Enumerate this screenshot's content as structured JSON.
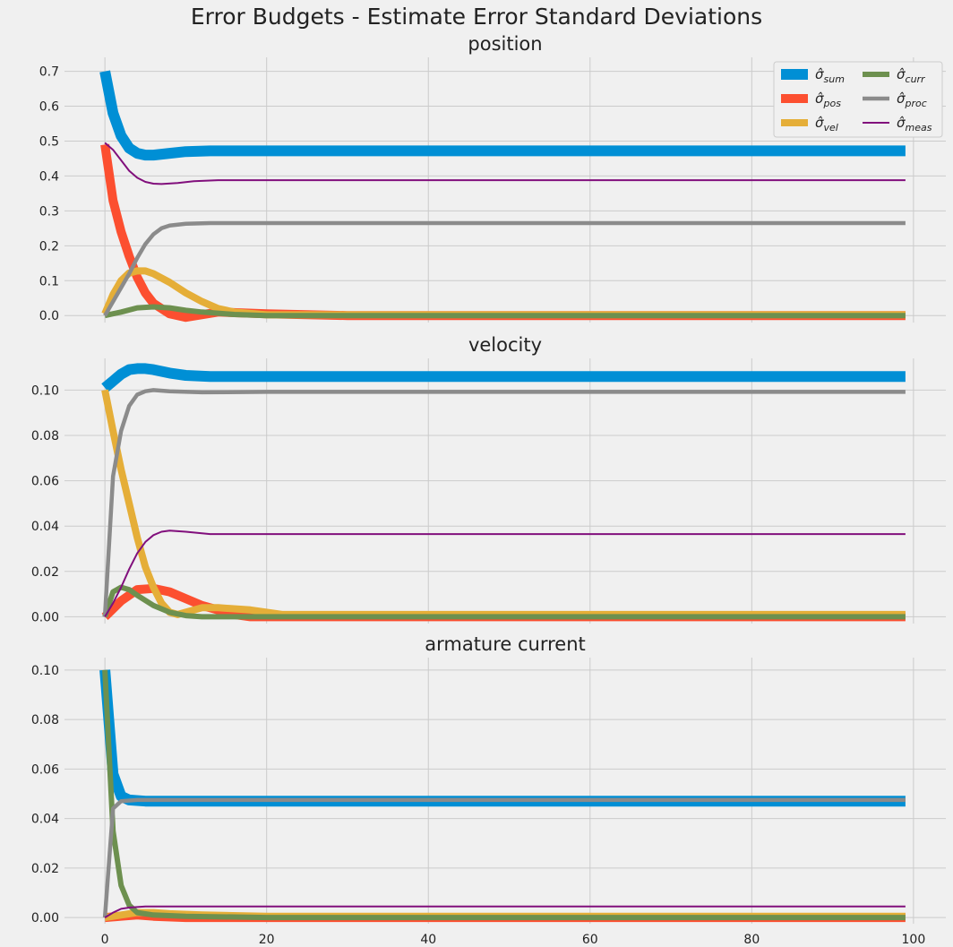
{
  "figure": {
    "suptitle": "Error Budgets - Estimate Error Standard Deviations"
  },
  "colors": {
    "sum": "#008fd5",
    "pos": "#fc4f30",
    "vel": "#e5ae38",
    "curr": "#6d904f",
    "proc": "#8b8b8b",
    "meas": "#810f7c",
    "background": "#f0f0f0",
    "grid": "#cbcbcb"
  },
  "legend": {
    "placement": "upper-right",
    "columns": 2,
    "entries": [
      {
        "key": "sum",
        "sub": "sum"
      },
      {
        "key": "pos",
        "sub": "pos"
      },
      {
        "key": "vel",
        "sub": "vel"
      },
      {
        "key": "curr",
        "sub": "curr"
      },
      {
        "key": "proc",
        "sub": "proc"
      },
      {
        "key": "meas",
        "sub": "meas"
      }
    ]
  },
  "chart_data": [
    {
      "type": "line",
      "title": "position",
      "xlim": [
        -5,
        104
      ],
      "ylim": [
        -0.02,
        0.74
      ],
      "xticks": [
        0,
        20,
        40,
        60,
        80,
        100
      ],
      "yticks": [
        0.0,
        0.1,
        0.2,
        0.3,
        0.4,
        0.5,
        0.6,
        0.7
      ],
      "ytick_labels": [
        "0.0",
        "0.1",
        "0.2",
        "0.3",
        "0.4",
        "0.5",
        "0.6",
        "0.7"
      ],
      "show_xtick_labels": false,
      "grid": true,
      "x_end": 99,
      "series": [
        {
          "name": "sum",
          "key": "sum",
          "points": [
            [
              0,
              0.7
            ],
            [
              1,
              0.58
            ],
            [
              2,
              0.515
            ],
            [
              3,
              0.48
            ],
            [
              4,
              0.465
            ],
            [
              5,
              0.46
            ],
            [
              6,
              0.46
            ],
            [
              8,
              0.465
            ],
            [
              10,
              0.47
            ],
            [
              13,
              0.472
            ],
            [
              20,
              0.472
            ]
          ],
          "final": 0.472
        },
        {
          "name": "pos",
          "key": "pos",
          "points": [
            [
              0,
              0.49
            ],
            [
              1,
              0.33
            ],
            [
              2,
              0.24
            ],
            [
              3,
              0.17
            ],
            [
              4,
              0.11
            ],
            [
              5,
              0.065
            ],
            [
              6,
              0.035
            ],
            [
              8,
              0.005
            ],
            [
              10,
              -0.005
            ],
            [
              14,
              0.01
            ],
            [
              20,
              0.005
            ],
            [
              30,
              0.0
            ]
          ],
          "final": 0.0
        },
        {
          "name": "vel",
          "key": "vel",
          "points": [
            [
              0,
              0.005
            ],
            [
              1,
              0.06
            ],
            [
              2,
              0.1
            ],
            [
              3,
              0.122
            ],
            [
              4,
              0.128
            ],
            [
              5,
              0.128
            ],
            [
              6,
              0.12
            ],
            [
              8,
              0.095
            ],
            [
              10,
              0.065
            ],
            [
              12,
              0.04
            ],
            [
              14,
              0.02
            ],
            [
              16,
              0.01
            ],
            [
              20,
              0.002
            ],
            [
              30,
              0.002
            ]
          ],
          "final": 0.002
        },
        {
          "name": "curr",
          "key": "curr",
          "points": [
            [
              0,
              0.0
            ],
            [
              2,
              0.01
            ],
            [
              4,
              0.022
            ],
            [
              6,
              0.025
            ],
            [
              8,
              0.022
            ],
            [
              10,
              0.015
            ],
            [
              12,
              0.01
            ],
            [
              16,
              0.003
            ],
            [
              20,
              0.0
            ]
          ],
          "final": 0.0
        },
        {
          "name": "proc",
          "key": "proc",
          "points": [
            [
              0,
              0.0
            ],
            [
              1,
              0.04
            ],
            [
              2,
              0.08
            ],
            [
              3,
              0.12
            ],
            [
              4,
              0.165
            ],
            [
              5,
              0.205
            ],
            [
              6,
              0.233
            ],
            [
              7,
              0.25
            ],
            [
              8,
              0.258
            ],
            [
              10,
              0.263
            ],
            [
              13,
              0.265
            ],
            [
              20,
              0.265
            ]
          ],
          "final": 0.265
        },
        {
          "name": "meas",
          "key": "meas",
          "points": [
            [
              0,
              0.495
            ],
            [
              1,
              0.475
            ],
            [
              2,
              0.445
            ],
            [
              3,
              0.415
            ],
            [
              4,
              0.395
            ],
            [
              5,
              0.383
            ],
            [
              6,
              0.378
            ],
            [
              7,
              0.377
            ],
            [
              9,
              0.38
            ],
            [
              11,
              0.385
            ],
            [
              14,
              0.388
            ],
            [
              20,
              0.388
            ]
          ],
          "final": 0.388
        }
      ]
    },
    {
      "type": "line",
      "title": "velocity",
      "xlim": [
        -5,
        104
      ],
      "ylim": [
        -0.003,
        0.114
      ],
      "xticks": [
        0,
        20,
        40,
        60,
        80,
        100
      ],
      "yticks": [
        0.0,
        0.02,
        0.04,
        0.06,
        0.08,
        0.1
      ],
      "ytick_labels": [
        "0.00",
        "0.02",
        "0.04",
        "0.06",
        "0.08",
        "0.10"
      ],
      "show_xtick_labels": false,
      "grid": true,
      "x_end": 99,
      "series": [
        {
          "name": "sum",
          "key": "sum",
          "points": [
            [
              0,
              0.101
            ],
            [
              1,
              0.104
            ],
            [
              2,
              0.107
            ],
            [
              3,
              0.109
            ],
            [
              4,
              0.1095
            ],
            [
              5,
              0.1095
            ],
            [
              6,
              0.109
            ],
            [
              8,
              0.1075
            ],
            [
              10,
              0.1065
            ],
            [
              13,
              0.106
            ],
            [
              20,
              0.106
            ]
          ],
          "final": 0.106
        },
        {
          "name": "pos",
          "key": "pos",
          "points": [
            [
              0,
              0.0
            ],
            [
              2,
              0.007
            ],
            [
              4,
              0.012
            ],
            [
              6,
              0.0125
            ],
            [
              8,
              0.011
            ],
            [
              10,
              0.008
            ],
            [
              12,
              0.005
            ],
            [
              14,
              0.003
            ],
            [
              16,
              0.001
            ],
            [
              18,
              0.0
            ],
            [
              25,
              0.0
            ]
          ],
          "final": 0.0
        },
        {
          "name": "vel",
          "key": "vel",
          "points": [
            [
              0,
              0.1
            ],
            [
              1,
              0.082
            ],
            [
              2,
              0.065
            ],
            [
              3,
              0.05
            ],
            [
              4,
              0.035
            ],
            [
              5,
              0.022
            ],
            [
              6,
              0.013
            ],
            [
              7,
              0.006
            ],
            [
              8,
              0.002
            ],
            [
              9,
              0.001
            ],
            [
              10,
              0.002
            ],
            [
              12,
              0.004
            ],
            [
              14,
              0.004
            ],
            [
              18,
              0.003
            ],
            [
              22,
              0.001
            ],
            [
              30,
              0.001
            ]
          ],
          "final": 0.001
        },
        {
          "name": "curr",
          "key": "curr",
          "points": [
            [
              0,
              0.0
            ],
            [
              1,
              0.011
            ],
            [
              2,
              0.013
            ],
            [
              3,
              0.012
            ],
            [
              4,
              0.0095
            ],
            [
              6,
              0.005
            ],
            [
              8,
              0.002
            ],
            [
              10,
              0.0005
            ],
            [
              12,
              0.0
            ],
            [
              20,
              0.0
            ]
          ],
          "final": 0.0
        },
        {
          "name": "proc",
          "key": "proc",
          "points": [
            [
              0,
              0.0
            ],
            [
              1,
              0.062
            ],
            [
              2,
              0.082
            ],
            [
              3,
              0.093
            ],
            [
              4,
              0.098
            ],
            [
              5,
              0.0995
            ],
            [
              6,
              0.1
            ],
            [
              8,
              0.0995
            ],
            [
              12,
              0.099
            ],
            [
              20,
              0.0992
            ]
          ],
          "final": 0.0992
        },
        {
          "name": "meas",
          "key": "meas",
          "points": [
            [
              0,
              0.0
            ],
            [
              1,
              0.006
            ],
            [
              2,
              0.013
            ],
            [
              3,
              0.021
            ],
            [
              4,
              0.028
            ],
            [
              5,
              0.033
            ],
            [
              6,
              0.036
            ],
            [
              7,
              0.0375
            ],
            [
              8,
              0.038
            ],
            [
              10,
              0.0375
            ],
            [
              13,
              0.0365
            ],
            [
              20,
              0.0365
            ]
          ],
          "final": 0.0365
        }
      ]
    },
    {
      "type": "line",
      "title": "armature current",
      "xlim": [
        -5,
        104
      ],
      "ylim": [
        -0.0025,
        0.105
      ],
      "xticks": [
        0,
        20,
        40,
        60,
        80,
        100
      ],
      "yticks": [
        0.0,
        0.02,
        0.04,
        0.06,
        0.08,
        0.1
      ],
      "ytick_labels": [
        "0.00",
        "0.02",
        "0.04",
        "0.06",
        "0.08",
        "0.10"
      ],
      "xtick_labels": [
        "0",
        "20",
        "40",
        "60",
        "80",
        "100"
      ],
      "show_xtick_labels": true,
      "grid": true,
      "x_end": 99,
      "series": [
        {
          "name": "sum",
          "key": "sum",
          "points": [
            [
              0,
              0.1
            ],
            [
              1,
              0.058
            ],
            [
              2,
              0.049
            ],
            [
              3,
              0.0475
            ],
            [
              5,
              0.047
            ],
            [
              8,
              0.047
            ],
            [
              20,
              0.047
            ]
          ],
          "final": 0.047
        },
        {
          "name": "pos",
          "key": "pos",
          "points": [
            [
              0,
              0.0
            ],
            [
              2,
              0.0005
            ],
            [
              4,
              0.001
            ],
            [
              6,
              0.0005
            ],
            [
              10,
              0.0
            ],
            [
              20,
              0.0
            ]
          ],
          "final": 0.0
        },
        {
          "name": "vel",
          "key": "vel",
          "points": [
            [
              0,
              0.0
            ],
            [
              2,
              0.001
            ],
            [
              4,
              0.002
            ],
            [
              6,
              0.002
            ],
            [
              8,
              0.0015
            ],
            [
              12,
              0.001
            ],
            [
              20,
              0.0005
            ],
            [
              30,
              0.0005
            ]
          ],
          "final": 0.0005
        },
        {
          "name": "curr",
          "key": "curr",
          "points": [
            [
              0,
              0.1
            ],
            [
              1,
              0.035
            ],
            [
              2,
              0.013
            ],
            [
              3,
              0.005
            ],
            [
              4,
              0.002
            ],
            [
              6,
              0.001
            ],
            [
              10,
              0.0005
            ],
            [
              20,
              0.0
            ]
          ],
          "final": 0.0
        },
        {
          "name": "proc",
          "key": "proc",
          "points": [
            [
              0,
              0.0
            ],
            [
              1,
              0.044
            ],
            [
              2,
              0.047
            ],
            [
              4,
              0.0475
            ],
            [
              8,
              0.0475
            ],
            [
              20,
              0.0475
            ]
          ],
          "final": 0.0475
        },
        {
          "name": "meas",
          "key": "meas",
          "points": [
            [
              0,
              0.0
            ],
            [
              1,
              0.002
            ],
            [
              2,
              0.0035
            ],
            [
              3,
              0.004
            ],
            [
              5,
              0.0045
            ],
            [
              8,
              0.0045
            ],
            [
              20,
              0.0045
            ]
          ],
          "final": 0.0045
        }
      ]
    }
  ]
}
